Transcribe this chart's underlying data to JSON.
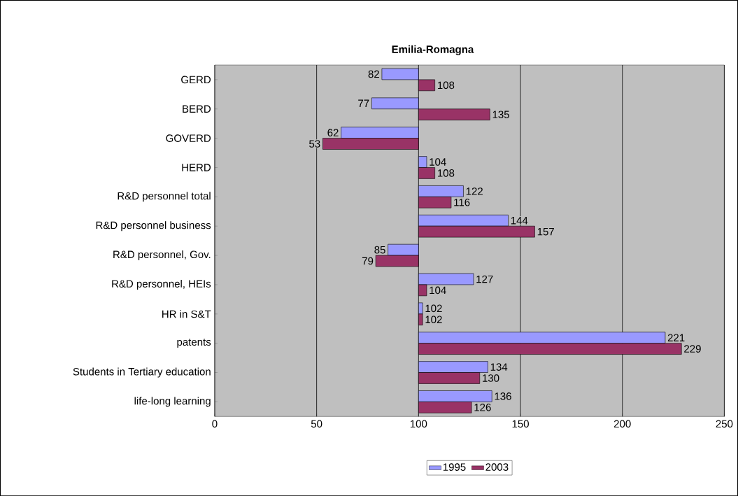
{
  "chart_data": {
    "type": "bar",
    "orientation": "horizontal",
    "title": "Emilia-Romagna",
    "categories": [
      "GERD",
      "BERD",
      "GOVERD",
      "HERD",
      "R&D personnel total",
      "R&D personnel business",
      "R&D personnel, Gov.",
      "R&D personnel, HEIs",
      "HR in S&T",
      "patents",
      "Students in Tertiary education",
      "life-long learning"
    ],
    "series": [
      {
        "name": "1995",
        "color": "#9999ff",
        "base": [
          100,
          100,
          100,
          100,
          100,
          100,
          100,
          100,
          100,
          100,
          100,
          100
        ],
        "values": [
          -18,
          -23,
          -38,
          4,
          22,
          44,
          -15,
          27,
          2,
          121,
          34,
          36
        ],
        "value_labels": [
          "82",
          "77",
          "62",
          "104",
          "122",
          "144",
          "85",
          "127",
          "102",
          "221",
          "134",
          "136"
        ]
      },
      {
        "name": "2003",
        "color": "#993366",
        "base": [
          100,
          100,
          100,
          100,
          100,
          100,
          100,
          100,
          100,
          100,
          100,
          100
        ],
        "values": [
          8,
          35,
          -47,
          8,
          16,
          57,
          -21,
          4,
          2,
          129,
          30,
          26
        ],
        "value_labels": [
          "108",
          "135",
          "53",
          "108",
          "116",
          "157",
          "79",
          "104",
          "102",
          "229",
          "130",
          "126"
        ]
      }
    ],
    "xlim": [
      0,
      250
    ],
    "xticks": [
      0,
      50,
      100,
      150,
      200,
      250
    ],
    "grid": "x",
    "legend": "bottom"
  }
}
